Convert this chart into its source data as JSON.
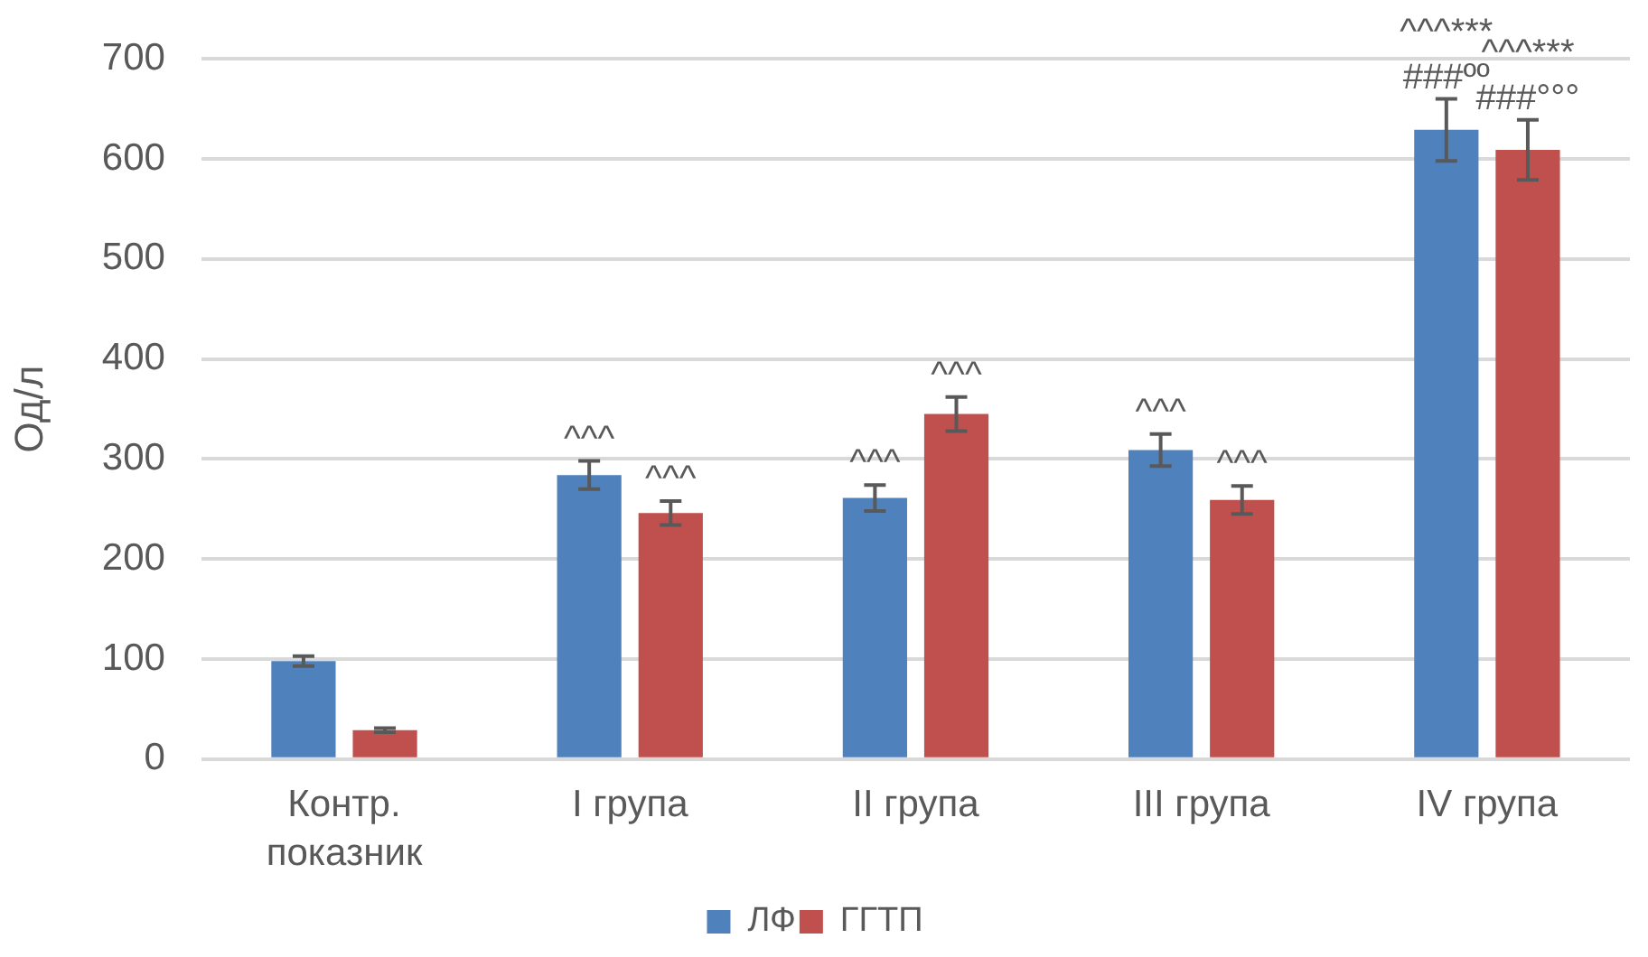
{
  "chart_data": {
    "type": "bar",
    "ylabel": "Од/л",
    "categories": [
      "Контр. показник",
      "I група",
      "II група",
      "III група",
      "IV група"
    ],
    "series": [
      {
        "name": "ЛФ",
        "color": "#4f81bd",
        "values": [
          98,
          284,
          261,
          309,
          629
        ],
        "errors": [
          5,
          14,
          13,
          16,
          31
        ]
      },
      {
        "name": "ГГТП",
        "color": "#c0504d",
        "values": [
          29,
          246,
          345,
          259,
          609
        ],
        "errors": [
          2,
          12,
          17,
          14,
          30
        ]
      }
    ],
    "ylim": [
      0,
      700
    ],
    "yticks": [
      0,
      100,
      200,
      300,
      400,
      500,
      600,
      700
    ],
    "grid": "y",
    "legend": "bottom",
    "annotations": [
      {
        "text": "^^^",
        "x": "I група",
        "y": 284
      },
      {
        "text": "^^^",
        "x": "I група",
        "y": 246
      },
      {
        "text": "^^^",
        "x": "II група",
        "y": 261
      },
      {
        "text": "^^^",
        "x": "II група",
        "y": 345
      },
      {
        "text": "^^^",
        "x": "III група",
        "y": 309
      },
      {
        "text": "^^^",
        "x": "III група",
        "y": 259
      },
      {
        "text": "^^^***",
        "x": "IV група",
        "y": 629
      },
      {
        "text": "###ºº",
        "x": "IV група",
        "y": 629
      },
      {
        "text": "^^^***",
        "x": "IV група",
        "y": 609
      },
      {
        "text": "###°°°",
        "x": "IV група",
        "y": 609
      }
    ]
  }
}
